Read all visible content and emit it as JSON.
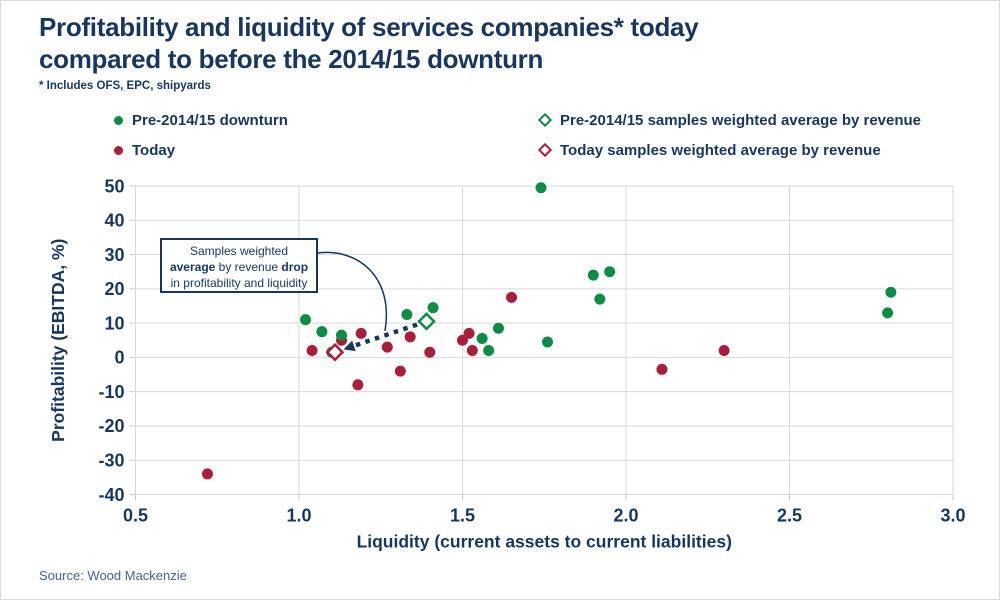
{
  "header": {
    "title_line1": "Profitability and liquidity of services companies* today",
    "title_line2": "compared to before the 2014/15 downturn",
    "footnote": "* Includes OFS, EPC, shipyards"
  },
  "colors": {
    "navy_text": "#17375e",
    "green_series": "#0e8b44",
    "red_series": "#a91e3b",
    "gridline": "#d9d9d9",
    "source_text": "#47628f"
  },
  "legend": {
    "items": [
      {
        "label": "Pre-2014/15 downturn",
        "marker": "dot",
        "color": "#0e8b44"
      },
      {
        "label": "Today",
        "marker": "dot",
        "color": "#a91e3b"
      },
      {
        "label": "Pre-2014/15 samples weighted average by revenue",
        "marker": "diamond",
        "color": "#0e8b44"
      },
      {
        "label": "Today samples weighted average by revenue",
        "marker": "diamond",
        "color": "#a91e3b"
      }
    ]
  },
  "chart_data": {
    "type": "scatter",
    "title": "Profitability and liquidity of services companies* today compared to before the 2014/15 downturn",
    "xlabel": "Liquidity (current assets to current liabilities)",
    "ylabel": "Profitability (EBITDA, %)",
    "xlim": [
      0.5,
      3.0
    ],
    "ylim": [
      -40,
      50
    ],
    "x_ticks": [
      0.5,
      1.0,
      1.5,
      2.0,
      2.5,
      3.0
    ],
    "x_tick_labels": [
      "0.5",
      "1.0",
      "1.5",
      "2.0",
      "2.5",
      "3.0"
    ],
    "y_ticks": [
      50,
      40,
      30,
      20,
      10,
      0,
      -10,
      -20,
      -30,
      -40
    ],
    "grid": true,
    "legend_position": "top",
    "series": [
      {
        "name": "Pre-2014/15 downturn",
        "marker": "circle",
        "color": "#0e8b44",
        "points": [
          [
            1.02,
            11
          ],
          [
            1.07,
            7.5
          ],
          [
            1.1,
            1.5
          ],
          [
            1.13,
            6.5
          ],
          [
            1.33,
            12.5
          ],
          [
            1.41,
            14.5
          ],
          [
            1.56,
            5.5
          ],
          [
            1.58,
            2
          ],
          [
            1.61,
            8.5
          ],
          [
            1.74,
            49.5
          ],
          [
            1.76,
            4.5
          ],
          [
            1.9,
            24
          ],
          [
            1.92,
            17
          ],
          [
            1.95,
            25
          ],
          [
            2.8,
            13
          ],
          [
            2.81,
            19
          ]
        ]
      },
      {
        "name": "Today",
        "marker": "circle",
        "color": "#a91e3b",
        "points": [
          [
            0.72,
            -34
          ],
          [
            1.04,
            2
          ],
          [
            1.13,
            5
          ],
          [
            1.18,
            -8
          ],
          [
            1.19,
            7
          ],
          [
            1.27,
            3
          ],
          [
            1.31,
            -4
          ],
          [
            1.34,
            6
          ],
          [
            1.4,
            1.5
          ],
          [
            1.5,
            5
          ],
          [
            1.52,
            7
          ],
          [
            1.53,
            2
          ],
          [
            1.65,
            17.5
          ],
          [
            2.11,
            -3.5
          ],
          [
            2.3,
            2
          ]
        ]
      },
      {
        "name": "Pre-2014/15 samples weighted average by revenue",
        "marker": "diamond-open",
        "color": "#0e8b44",
        "points": [
          [
            1.39,
            10.5
          ]
        ]
      },
      {
        "name": "Today samples weighted average by revenue",
        "marker": "diamond-open",
        "color": "#a91e3b",
        "points": [
          [
            1.11,
            1.5
          ]
        ]
      }
    ],
    "arrow": {
      "from": [
        1.39,
        10.5
      ],
      "to": [
        1.11,
        1.5
      ],
      "style": "dotted",
      "color": "#17375e"
    },
    "annotation": {
      "lines": [
        [
          {
            "text": "Samples weighted",
            "bold": false
          }
        ],
        [
          {
            "text": "average",
            "bold": true
          },
          {
            "text": " by revenue ",
            "bold": false
          },
          {
            "text": "drop",
            "bold": true
          }
        ],
        [
          {
            "text": "in profitability and liquidity",
            "bold": false
          }
        ]
      ]
    }
  },
  "footer": {
    "source": "Source: Wood Mackenzie"
  }
}
